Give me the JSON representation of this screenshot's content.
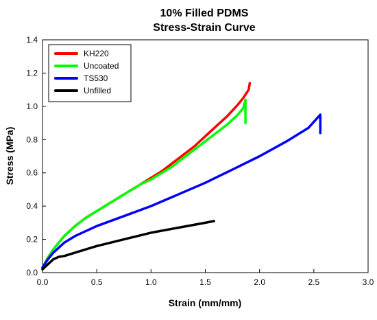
{
  "chart_data": {
    "type": "line",
    "title": [
      "10% Filled PDMS",
      "Stress-Strain Curve"
    ],
    "xlabel": "Strain (mm/mm)",
    "ylabel": "Stress (MPa)",
    "xlim": [
      0,
      3.0
    ],
    "ylim": [
      0,
      1.4
    ],
    "xticks": [
      0.0,
      0.5,
      1.0,
      1.5,
      2.0,
      2.5,
      3.0
    ],
    "xtick_labels": [
      "0.0",
      "0.5",
      "1.0",
      "1.5",
      "2.0",
      "2.5",
      "3.0"
    ],
    "yticks": [
      0.0,
      0.2,
      0.4,
      0.6,
      0.8,
      1.0,
      1.2,
      1.4
    ],
    "ytick_labels": [
      "0.0",
      "0.2",
      "0.4",
      "0.6",
      "0.8",
      "1.0",
      "1.2",
      "1.4"
    ],
    "grid": false,
    "legend_position": "top-left",
    "series": [
      {
        "name": "KH220",
        "color": "#ff0000",
        "x": [
          0.0,
          0.05,
          0.1,
          0.2,
          0.3,
          0.4,
          0.5,
          0.6,
          0.7,
          0.8,
          0.9,
          1.0,
          1.1,
          1.2,
          1.3,
          1.4,
          1.5,
          1.6,
          1.7,
          1.8,
          1.85,
          1.9,
          1.91
        ],
        "y": [
          0.03,
          0.09,
          0.14,
          0.22,
          0.28,
          0.33,
          0.37,
          0.41,
          0.45,
          0.49,
          0.53,
          0.57,
          0.61,
          0.66,
          0.71,
          0.76,
          0.82,
          0.88,
          0.94,
          1.01,
          1.05,
          1.1,
          1.14
        ]
      },
      {
        "name": "Uncoated",
        "color": "#00ff00",
        "x": [
          0.0,
          0.05,
          0.1,
          0.2,
          0.3,
          0.4,
          0.5,
          0.6,
          0.7,
          0.8,
          0.9,
          1.0,
          1.1,
          1.2,
          1.3,
          1.4,
          1.5,
          1.6,
          1.7,
          1.8,
          1.85,
          1.87,
          1.87
        ],
        "y": [
          0.03,
          0.09,
          0.14,
          0.22,
          0.28,
          0.33,
          0.37,
          0.41,
          0.45,
          0.49,
          0.53,
          0.56,
          0.6,
          0.64,
          0.69,
          0.74,
          0.79,
          0.84,
          0.89,
          0.95,
          0.99,
          1.04,
          0.9
        ]
      },
      {
        "name": "TS530",
        "color": "#0000ff",
        "x": [
          0.0,
          0.05,
          0.1,
          0.2,
          0.3,
          0.5,
          0.75,
          1.0,
          1.25,
          1.5,
          1.75,
          2.0,
          2.25,
          2.45,
          2.56,
          2.56
        ],
        "y": [
          0.03,
          0.08,
          0.12,
          0.18,
          0.22,
          0.28,
          0.34,
          0.4,
          0.47,
          0.54,
          0.62,
          0.7,
          0.79,
          0.87,
          0.95,
          0.84
        ]
      },
      {
        "name": "Unfilled",
        "color": "#000000",
        "x": [
          0.0,
          0.05,
          0.1,
          0.15,
          0.2,
          0.3,
          0.5,
          0.75,
          1.0,
          1.25,
          1.5,
          1.58
        ],
        "y": [
          0.02,
          0.05,
          0.08,
          0.095,
          0.1,
          0.12,
          0.16,
          0.2,
          0.24,
          0.27,
          0.3,
          0.31
        ]
      }
    ]
  }
}
